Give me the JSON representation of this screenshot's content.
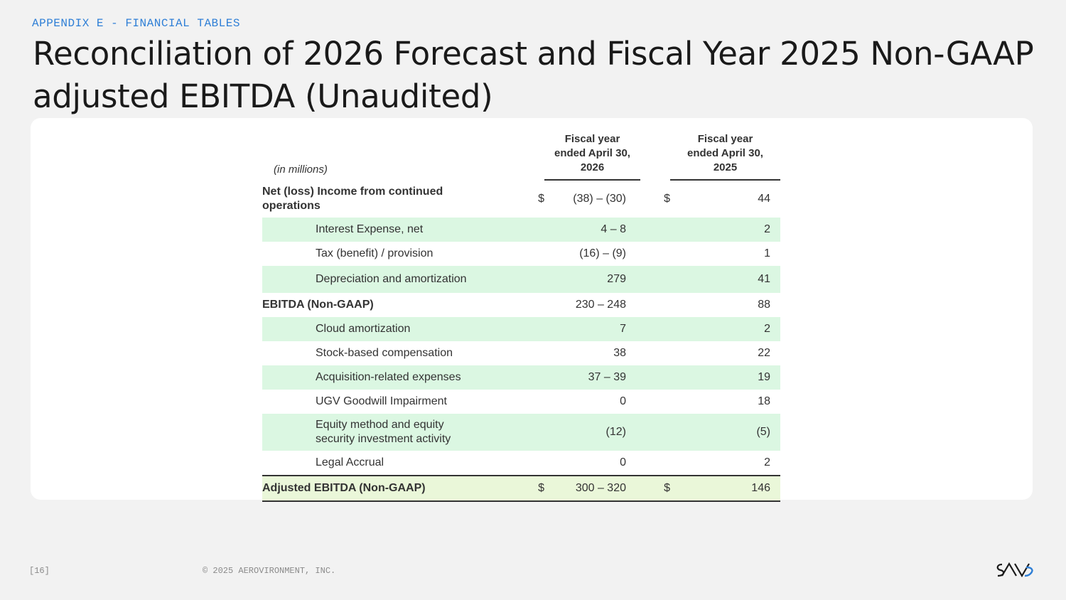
{
  "header": {
    "eyebrow": "APPENDIX E - FINANCIAL TABLES",
    "title": "Reconciliation of 2026 Forecast and Fiscal Year 2025 Non-GAAP adjusted EBITDA (Unaudited)"
  },
  "table": {
    "units_label": "(in millions)",
    "col1_header": [
      "Fiscal year",
      "ended April 30,",
      "2026"
    ],
    "col2_header": [
      "Fiscal year",
      "ended April 30,",
      "2025"
    ],
    "rows": [
      {
        "label": [
          "Net (loss) Income from continued",
          "operations"
        ],
        "dollar1": "$",
        "v1": "(38) – (30)",
        "dollar2": "$",
        "v2": "44"
      },
      {
        "label": "Interest Expense, net",
        "v1": "4 – 8",
        "v2": "2"
      },
      {
        "label": "Tax (benefit) / provision",
        "v1": "(16) – (9)",
        "v2": "1"
      },
      {
        "label": "Depreciation and amortization",
        "v1": "279",
        "v2": "41"
      },
      {
        "label": "EBITDA (Non-GAAP)",
        "v1": "230 – 248",
        "v2": "88"
      },
      {
        "label": "Cloud amortization",
        "v1": "7",
        "v2": "2"
      },
      {
        "label": "Stock-based compensation",
        "v1": "38",
        "v2": "22"
      },
      {
        "label": "Acquisition-related expenses",
        "v1": "37 – 39",
        "v2": "19"
      },
      {
        "label": "UGV Goodwill Impairment",
        "v1": "0",
        "v2": "18"
      },
      {
        "label": [
          "Equity method and equity",
          "security investment activity"
        ],
        "v1": "(12)",
        "v2": "(5)"
      },
      {
        "label": "Legal Accrual",
        "v1": "0",
        "v2": "2"
      },
      {
        "label": "Adjusted EBITDA (Non-GAAP)",
        "dollar1": "$",
        "v1": "300 – 320",
        "dollar2": "$",
        "v2": "146"
      }
    ]
  },
  "footer": {
    "page": "[16]",
    "copyright": "© 2025 AEROVIRONMENT, INC.",
    "logo_text": "AV"
  },
  "colors": {
    "accent": "#2f7fd6",
    "row_shade": "#dbf7e2",
    "total_shade": "#eaf7d9"
  }
}
